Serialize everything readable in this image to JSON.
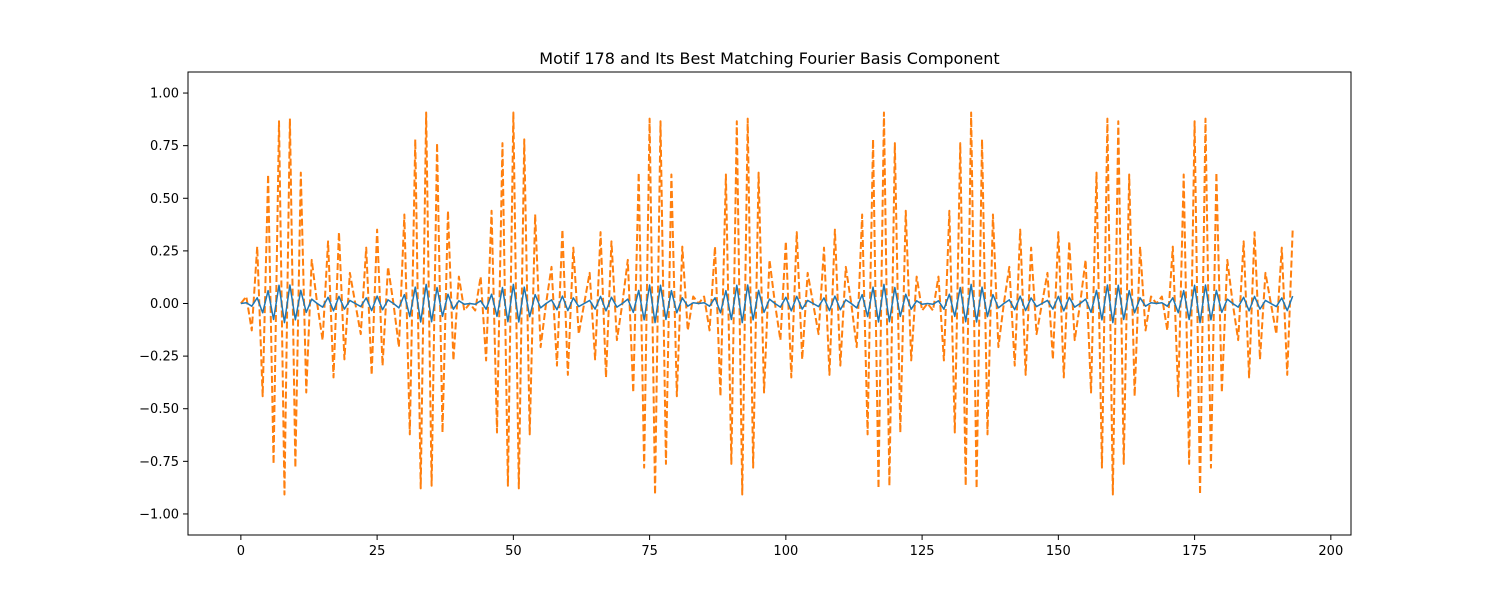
{
  "chart_data": {
    "type": "line",
    "title": "Motif 178 and Its Best Matching Fourier Basis Component",
    "xlabel": "",
    "ylabel": "",
    "xlim": [
      -9.7,
      203.7
    ],
    "ylim": [
      -1.1,
      1.1
    ],
    "x_ticks": [
      0,
      25,
      50,
      75,
      100,
      125,
      150,
      175,
      200
    ],
    "x_tick_labels": [
      "0",
      "25",
      "50",
      "75",
      "100",
      "125",
      "150",
      "175",
      "200"
    ],
    "y_ticks": [
      1.0,
      0.75,
      0.5,
      0.25,
      0.0,
      -0.25,
      -0.5,
      -0.75,
      -1.0
    ],
    "y_tick_labels": [
      "1.00",
      "0.75",
      "0.50",
      "0.25",
      "0.00",
      "−0.25",
      "−0.50",
      "−0.75",
      "−1.00"
    ],
    "grid": false,
    "legend": null,
    "x_range": [
      0,
      193
    ],
    "n_points": 194,
    "series": [
      {
        "style": "solid",
        "color": "#1f77b4",
        "amplitude": 0.1,
        "carrier_period": 2.1,
        "beat_period": 14.0
      },
      {
        "style": "dashed",
        "color": "#ff7f0e",
        "amplitude": 1.0,
        "carrier_period": 2.1,
        "beat_period": 14.0
      }
    ]
  }
}
